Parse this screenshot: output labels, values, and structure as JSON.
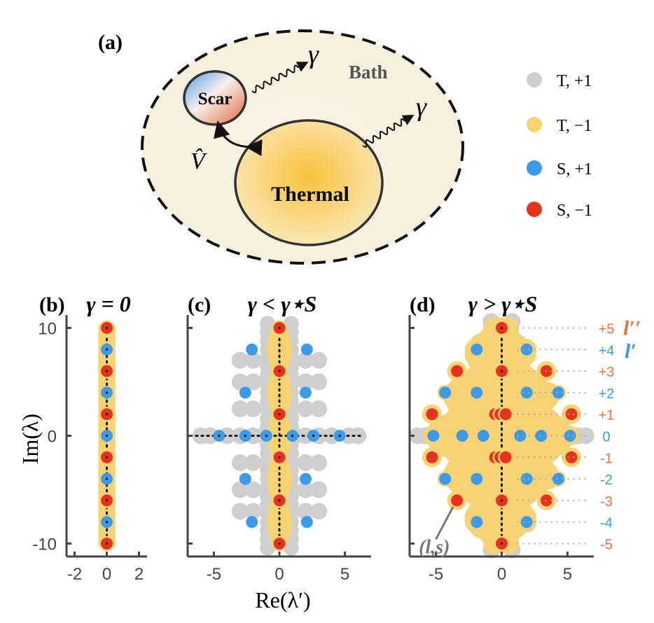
{
  "panel_a": {
    "label": "(a)",
    "scar_label": "Scar",
    "thermal_label": "Thermal",
    "bath_label": "Bath",
    "gamma_symbol": "γ",
    "coupling_symbol": "V̂"
  },
  "legend": {
    "position": "right of panel (a)",
    "items": [
      {
        "label": "T, +1",
        "color": "#cfcfcf"
      },
      {
        "label": "T, −1",
        "color": "#f8d374"
      },
      {
        "label": "S, +1",
        "color": "#3b9be8"
      },
      {
        "label": "S, −1",
        "color": "#e8321e"
      }
    ]
  },
  "colors": {
    "T_plus": "#cfcfcf",
    "T_minus": "#f8d374",
    "S_plus": "#3b9be8",
    "S_minus": "#e8321e",
    "l_double_prime": "#e8743b",
    "l_prime": "#3b9be8",
    "axis": "#444444"
  },
  "axes": {
    "ylabel": "Im(λ)",
    "xlabel": "Re(λ′)"
  },
  "right_labels": {
    "l_double_prime": "l′′",
    "l_prime": "l′",
    "annotation": "(l,s)"
  },
  "chart_data": [
    {
      "panel": "(b)",
      "type": "scatter",
      "title": "γ = 0",
      "xlim": [
        -2.5,
        2.5
      ],
      "ylim": [
        -11.2,
        11.2
      ],
      "xticks": [
        -2,
        0,
        2
      ],
      "yticks": [
        -10,
        0,
        10
      ],
      "grid": false,
      "series": [
        {
          "name": "T, +1",
          "points": []
        },
        {
          "name": "T, −1",
          "band": {
            "x": [
              -0.4,
              0.4
            ],
            "y": [
              -10,
              10
            ]
          }
        },
        {
          "name": "S, +1",
          "points": [
            [
              0,
              8
            ],
            [
              0,
              4
            ],
            [
              0,
              0
            ],
            [
              0,
              -4
            ],
            [
              0,
              -8
            ]
          ]
        },
        {
          "name": "S, −1",
          "points": [
            [
              0,
              10
            ],
            [
              0,
              6
            ],
            [
              0,
              2
            ],
            [
              0,
              -2
            ],
            [
              0,
              -6
            ],
            [
              0,
              -10
            ]
          ]
        }
      ]
    },
    {
      "panel": "(c)",
      "type": "scatter",
      "title": "γ < γ⋆S",
      "xlim": [
        -7,
        7
      ],
      "ylim": [
        -11.2,
        11.2
      ],
      "xticks": [
        -5,
        0,
        5
      ],
      "yticks": [
        -10,
        0,
        10
      ],
      "grid": false,
      "series": [
        {
          "name": "T, +1",
          "points": [
            [
              -6,
              0
            ],
            [
              -5.3,
              0
            ],
            [
              -4,
              0
            ],
            [
              -3,
              0
            ],
            [
              -2,
              0
            ],
            [
              -1.2,
              0
            ],
            [
              1.2,
              0
            ],
            [
              2,
              0
            ],
            [
              3,
              0
            ],
            [
              4,
              0
            ],
            [
              5.3,
              0
            ],
            [
              6,
              0
            ],
            [
              -3,
              2.5
            ],
            [
              -2,
              2.5
            ],
            [
              2,
              2.5
            ],
            [
              3,
              2.5
            ],
            [
              -3,
              -2.5
            ],
            [
              -2,
              -2.5
            ],
            [
              2,
              -2.5
            ],
            [
              3,
              -2.5
            ],
            [
              -3,
              5
            ],
            [
              -2,
              5
            ],
            [
              2,
              5
            ],
            [
              3,
              5
            ],
            [
              -3,
              -5
            ],
            [
              -2,
              -5
            ],
            [
              2,
              -5
            ],
            [
              3,
              -5
            ],
            [
              -3,
              7
            ],
            [
              -2,
              7
            ],
            [
              2,
              7
            ],
            [
              3,
              7
            ],
            [
              -3,
              -7
            ],
            [
              -2,
              -7
            ],
            [
              2,
              -7
            ],
            [
              3,
              -7
            ]
          ]
        },
        {
          "name": "T, −1",
          "points": [
            [
              0,
              -10
            ],
            [
              0,
              -6
            ],
            [
              0,
              -2
            ],
            [
              0,
              2
            ],
            [
              0,
              6
            ],
            [
              0,
              10
            ]
          ]
        },
        {
          "name": "S, +1",
          "points": [
            [
              -4.6,
              0
            ],
            [
              -2.6,
              0
            ],
            [
              -1.0,
              0
            ],
            [
              1.0,
              0
            ],
            [
              2.6,
              0
            ],
            [
              4.6,
              0
            ],
            [
              -2.6,
              4
            ],
            [
              2.0,
              4
            ],
            [
              -2.6,
              -4
            ],
            [
              2.0,
              -4
            ],
            [
              -2.1,
              8
            ],
            [
              2.1,
              8
            ],
            [
              -2.1,
              -8
            ],
            [
              2.1,
              -8
            ]
          ]
        },
        {
          "name": "S, −1",
          "points": [
            [
              0,
              10
            ],
            [
              0,
              6
            ],
            [
              0,
              2
            ],
            [
              0,
              -2
            ],
            [
              0,
              -6
            ],
            [
              0,
              -10
            ]
          ]
        }
      ]
    },
    {
      "panel": "(d)",
      "type": "scatter",
      "title": "γ > γ⋆S",
      "xlim": [
        -7,
        7
      ],
      "ylim": [
        -11.2,
        11.2
      ],
      "xticks": [
        -5,
        0,
        5
      ],
      "yticks": [
        -10,
        0,
        10
      ],
      "grid": false,
      "row_labels": [
        {
          "label": "+5",
          "y": 10,
          "kind": "l''"
        },
        {
          "label": "+4",
          "y": 8,
          "kind": "l'"
        },
        {
          "label": "+3",
          "y": 6,
          "kind": "l''"
        },
        {
          "label": "+2",
          "y": 4,
          "kind": "l'"
        },
        {
          "label": "+1",
          "y": 2,
          "kind": "l''"
        },
        {
          "label": "0",
          "y": 0,
          "kind": "l'"
        },
        {
          "label": "-1",
          "y": -2,
          "kind": "l''"
        },
        {
          "label": "-2",
          "y": -4,
          "kind": "l'"
        },
        {
          "label": "-3",
          "y": -6,
          "kind": "l''"
        },
        {
          "label": "-4",
          "y": -8,
          "kind": "l'"
        },
        {
          "label": "-5",
          "y": -10,
          "kind": "l''"
        }
      ],
      "series": [
        {
          "name": "T, +1",
          "points": [
            [
              -6.4,
              0
            ],
            [
              -5.8,
              0
            ],
            [
              5.8,
              0
            ],
            [
              6.4,
              0
            ],
            [
              -0.8,
              10.6
            ],
            [
              0.8,
              10.6
            ],
            [
              -0.8,
              -10.6
            ],
            [
              0.8,
              -10.6
            ]
          ]
        },
        {
          "name": "T, −1",
          "points": [
            [
              0,
              10
            ],
            [
              0,
              8
            ],
            [
              0,
              6
            ],
            [
              0,
              4
            ],
            [
              0,
              2
            ],
            [
              0,
              0
            ],
            [
              0,
              -2
            ],
            [
              0,
              -4
            ],
            [
              0,
              -6
            ],
            [
              0,
              -8
            ],
            [
              0,
              -10
            ]
          ]
        },
        {
          "name": "S, +1",
          "points": [
            [
              -1.9,
              8
            ],
            [
              1.9,
              8
            ],
            [
              -4.3,
              4
            ],
            [
              -1.9,
              4
            ],
            [
              1.9,
              4
            ],
            [
              4.3,
              4
            ],
            [
              -5.2,
              0
            ],
            [
              -3.0,
              0
            ],
            [
              -1.4,
              0
            ],
            [
              1.4,
              0
            ],
            [
              3.0,
              0
            ],
            [
              5.2,
              0
            ],
            [
              -4.3,
              -4
            ],
            [
              -1.9,
              -4
            ],
            [
              1.9,
              -4
            ],
            [
              4.3,
              -4
            ],
            [
              -1.9,
              -8
            ],
            [
              1.9,
              -8
            ]
          ]
        },
        {
          "name": "S, −1",
          "points": [
            [
              0,
              10
            ],
            [
              -3.4,
              6
            ],
            [
              0,
              6
            ],
            [
              3.4,
              6
            ],
            [
              -5.3,
              2
            ],
            [
              -0.5,
              2
            ],
            [
              -0.1,
              2
            ],
            [
              0.3,
              2
            ],
            [
              5.3,
              2
            ],
            [
              -5.3,
              -2
            ],
            [
              -0.5,
              -2
            ],
            [
              -0.1,
              -2
            ],
            [
              0.3,
              -2
            ],
            [
              5.3,
              -2
            ],
            [
              -3.4,
              -6
            ],
            [
              0,
              -6
            ],
            [
              3.4,
              -6
            ],
            [
              0,
              -10
            ]
          ]
        }
      ]
    }
  ]
}
